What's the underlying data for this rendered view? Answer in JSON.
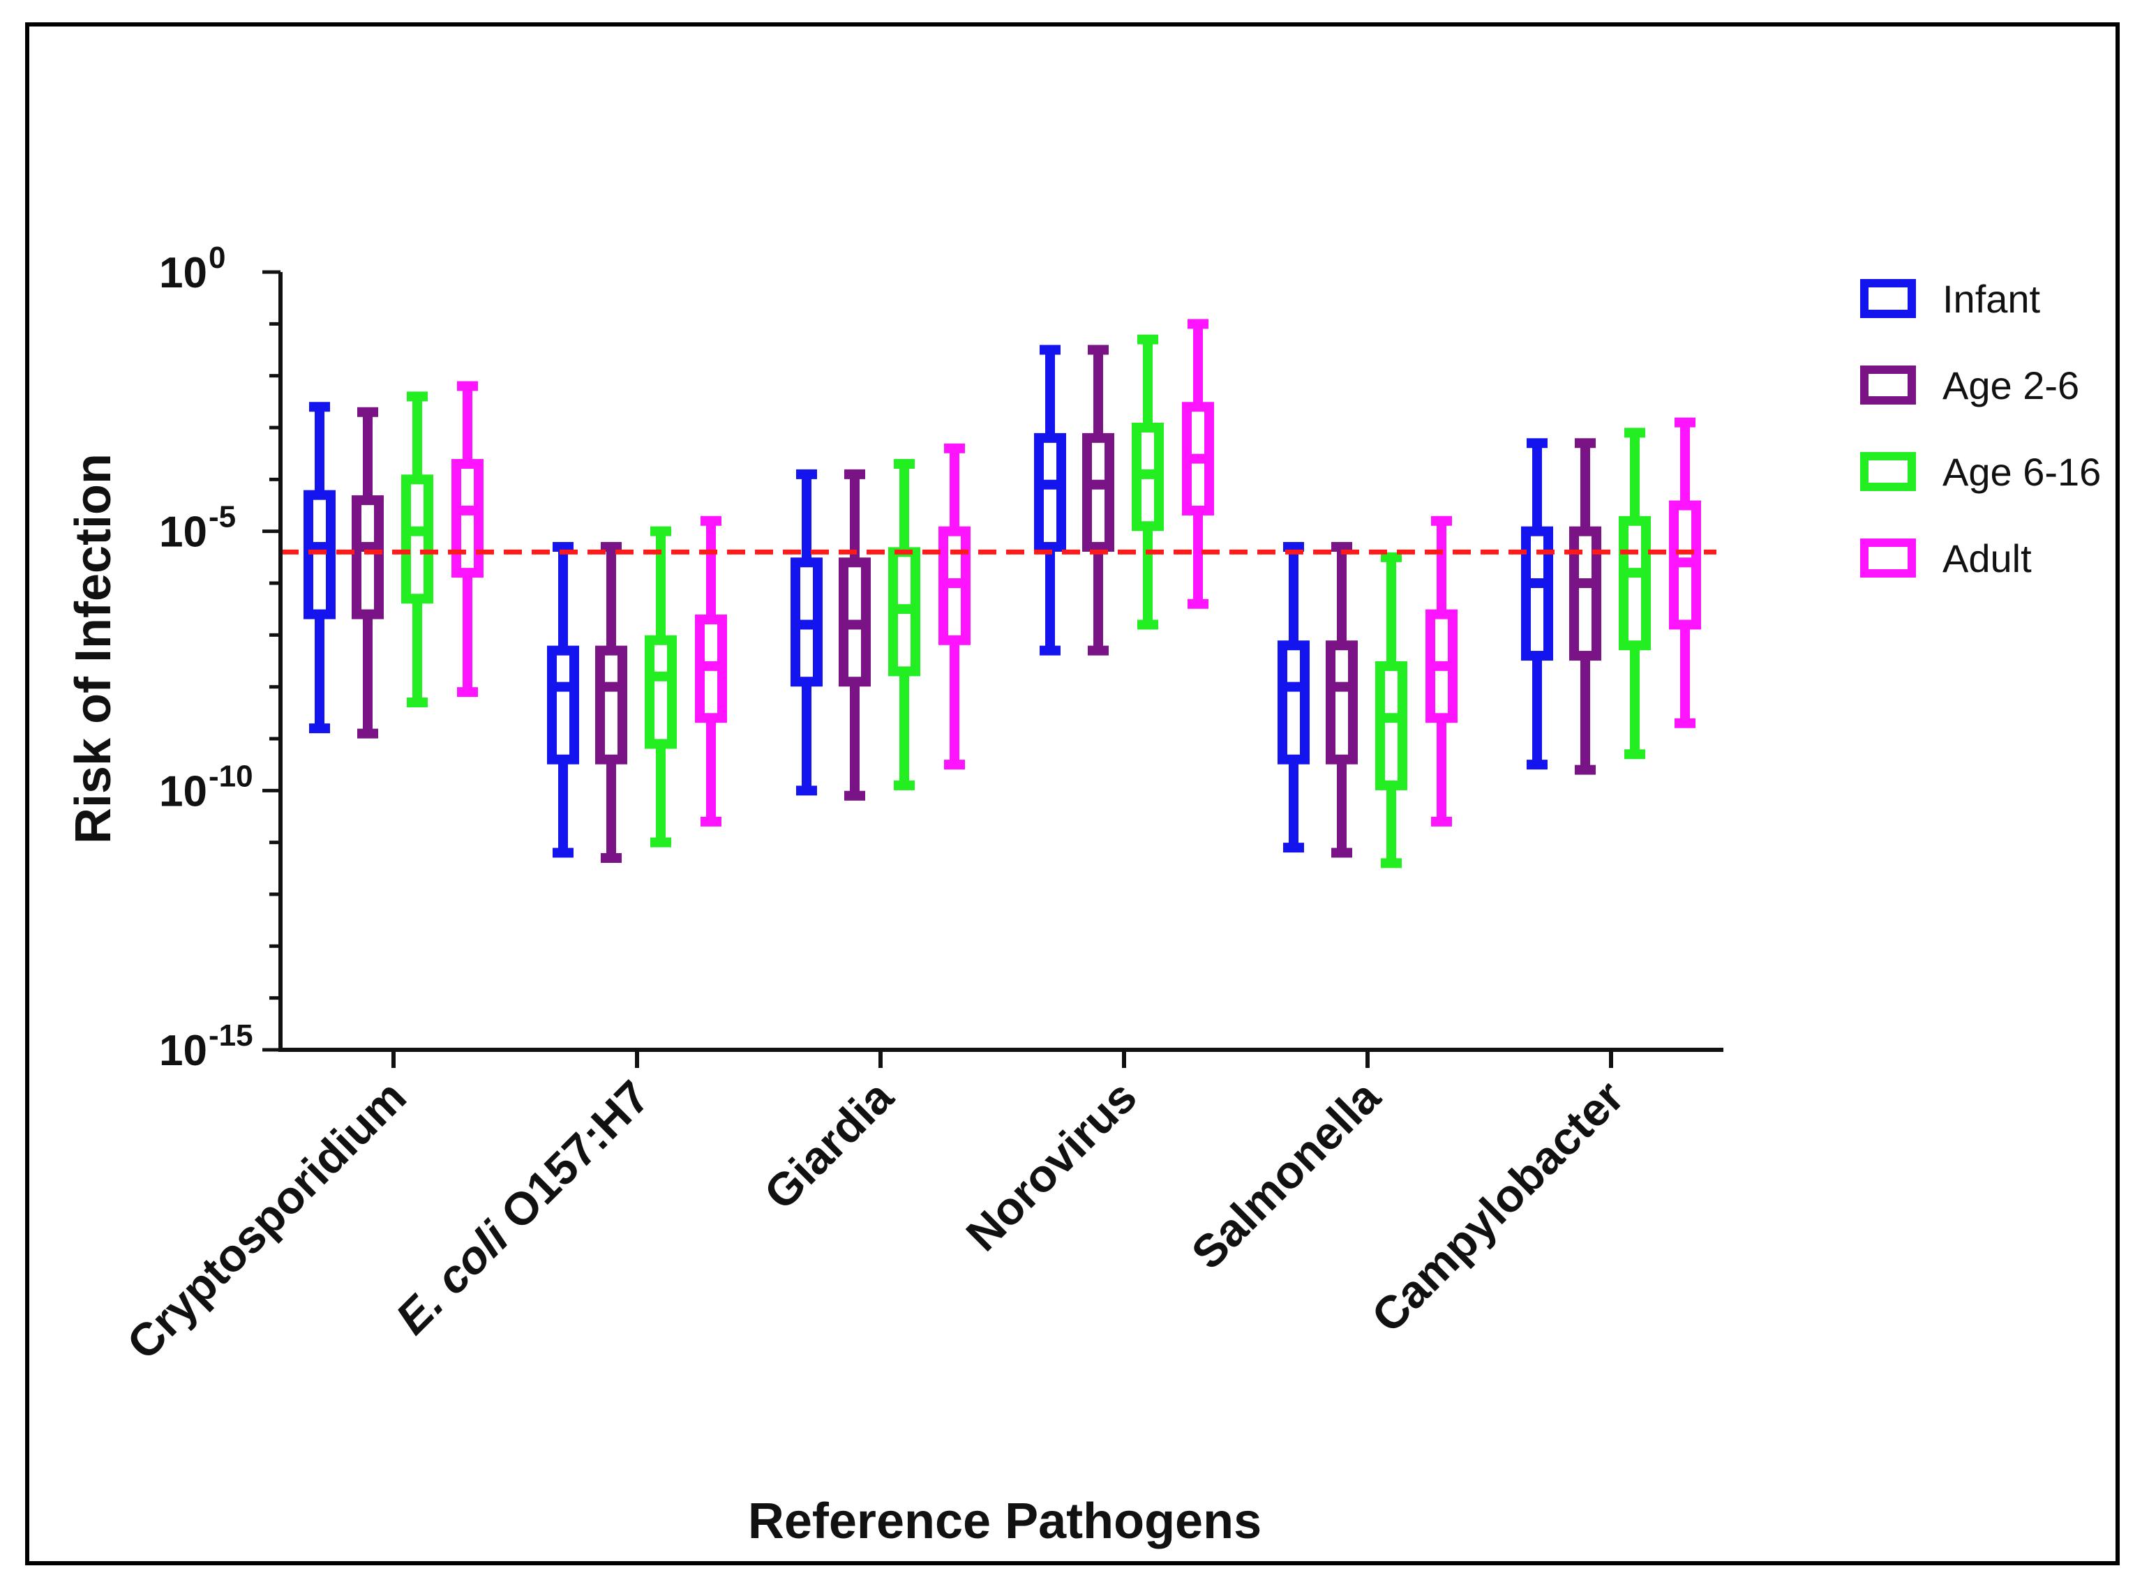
{
  "chart_data": {
    "type": "box",
    "title": "",
    "xlabel": "Reference Pathogens",
    "ylabel": "Risk of Infection",
    "yscale": "log10",
    "ylim_exponent": [
      -15,
      0
    ],
    "y_ticks": [
      {
        "base": "10",
        "exp": "0",
        "value": 0
      },
      {
        "base": "10",
        "exp": "-5",
        "value": -5
      },
      {
        "base": "10",
        "exp": "-10",
        "value": -10
      },
      {
        "base": "10",
        "exp": "-15",
        "value": -15
      }
    ],
    "categories": [
      {
        "label": "Cryptosporidium",
        "italic": "",
        "rest": "Cryptosporidium"
      },
      {
        "label": "E. coli O157:H7",
        "italic": "E. coli",
        "rest": " O157:H7"
      },
      {
        "label": "Giardia",
        "italic": "",
        "rest": "Giardia"
      },
      {
        "label": "Norovirus",
        "italic": "",
        "rest": "Norovirus"
      },
      {
        "label": "Salmonella",
        "italic": "",
        "rest": "Salmonella"
      },
      {
        "label": "Campylobacter",
        "italic": "",
        "rest": "Campylobacter"
      }
    ],
    "reference_line": {
      "log10_value": -5.4,
      "color": "#ff1a1a",
      "style": "dashed"
    },
    "legend_position": "top-right",
    "series": [
      {
        "name": "Infant",
        "color": "#1414ee",
        "values": [
          {
            "min": -8.8,
            "q1": -6.6,
            "median": -5.3,
            "q3": -4.3,
            "max": -2.6
          },
          {
            "min": -11.2,
            "q1": -9.4,
            "median": -8.0,
            "q3": -7.3,
            "max": -5.3
          },
          {
            "min": -10.0,
            "q1": -7.9,
            "median": -6.8,
            "q3": -5.6,
            "max": -3.9
          },
          {
            "min": -7.3,
            "q1": -5.3,
            "median": -4.1,
            "q3": -3.2,
            "max": -1.5
          },
          {
            "min": -11.1,
            "q1": -9.4,
            "median": -8.0,
            "q3": -7.2,
            "max": -5.3
          },
          {
            "min": -9.5,
            "q1": -7.4,
            "median": -6.0,
            "q3": -5.0,
            "max": -3.3
          }
        ]
      },
      {
        "name": "Age 2-6",
        "color": "#7a1486",
        "values": [
          {
            "min": -8.9,
            "q1": -6.6,
            "median": -5.3,
            "q3": -4.4,
            "max": -2.7
          },
          {
            "min": -11.3,
            "q1": -9.4,
            "median": -8.0,
            "q3": -7.3,
            "max": -5.3
          },
          {
            "min": -10.1,
            "q1": -7.9,
            "median": -6.8,
            "q3": -5.6,
            "max": -3.9
          },
          {
            "min": -7.3,
            "q1": -5.3,
            "median": -4.1,
            "q3": -3.2,
            "max": -1.5
          },
          {
            "min": -11.2,
            "q1": -9.4,
            "median": -8.0,
            "q3": -7.2,
            "max": -5.3
          },
          {
            "min": -9.6,
            "q1": -7.4,
            "median": -6.0,
            "q3": -5.0,
            "max": -3.3
          }
        ]
      },
      {
        "name": "Age 6-16",
        "color": "#22ee22",
        "values": [
          {
            "min": -8.3,
            "q1": -6.3,
            "median": -5.0,
            "q3": -4.0,
            "max": -2.4
          },
          {
            "min": -11.0,
            "q1": -9.1,
            "median": -7.8,
            "q3": -7.1,
            "max": -5.0
          },
          {
            "min": -9.9,
            "q1": -7.7,
            "median": -6.5,
            "q3": -5.4,
            "max": -3.7
          },
          {
            "min": -6.8,
            "q1": -4.9,
            "median": -3.9,
            "q3": -3.0,
            "max": -1.3
          },
          {
            "min": -11.4,
            "q1": -9.9,
            "median": -8.6,
            "q3": -7.6,
            "max": -5.5
          },
          {
            "min": -9.3,
            "q1": -7.2,
            "median": -5.8,
            "q3": -4.8,
            "max": -3.1
          }
        ]
      },
      {
        "name": "Adult",
        "color": "#ff14ff",
        "values": [
          {
            "min": -8.1,
            "q1": -5.8,
            "median": -4.6,
            "q3": -3.7,
            "max": -2.2
          },
          {
            "min": -10.6,
            "q1": -8.6,
            "median": -7.6,
            "q3": -6.7,
            "max": -4.8
          },
          {
            "min": -9.5,
            "q1": -7.1,
            "median": -6.0,
            "q3": -5.0,
            "max": -3.4
          },
          {
            "min": -6.4,
            "q1": -4.6,
            "median": -3.6,
            "q3": -2.6,
            "max": -1.0
          },
          {
            "min": -10.6,
            "q1": -8.6,
            "median": -7.6,
            "q3": -6.6,
            "max": -4.8
          },
          {
            "min": -8.7,
            "q1": -6.8,
            "median": -5.6,
            "q3": -4.5,
            "max": -2.9
          }
        ]
      }
    ]
  }
}
